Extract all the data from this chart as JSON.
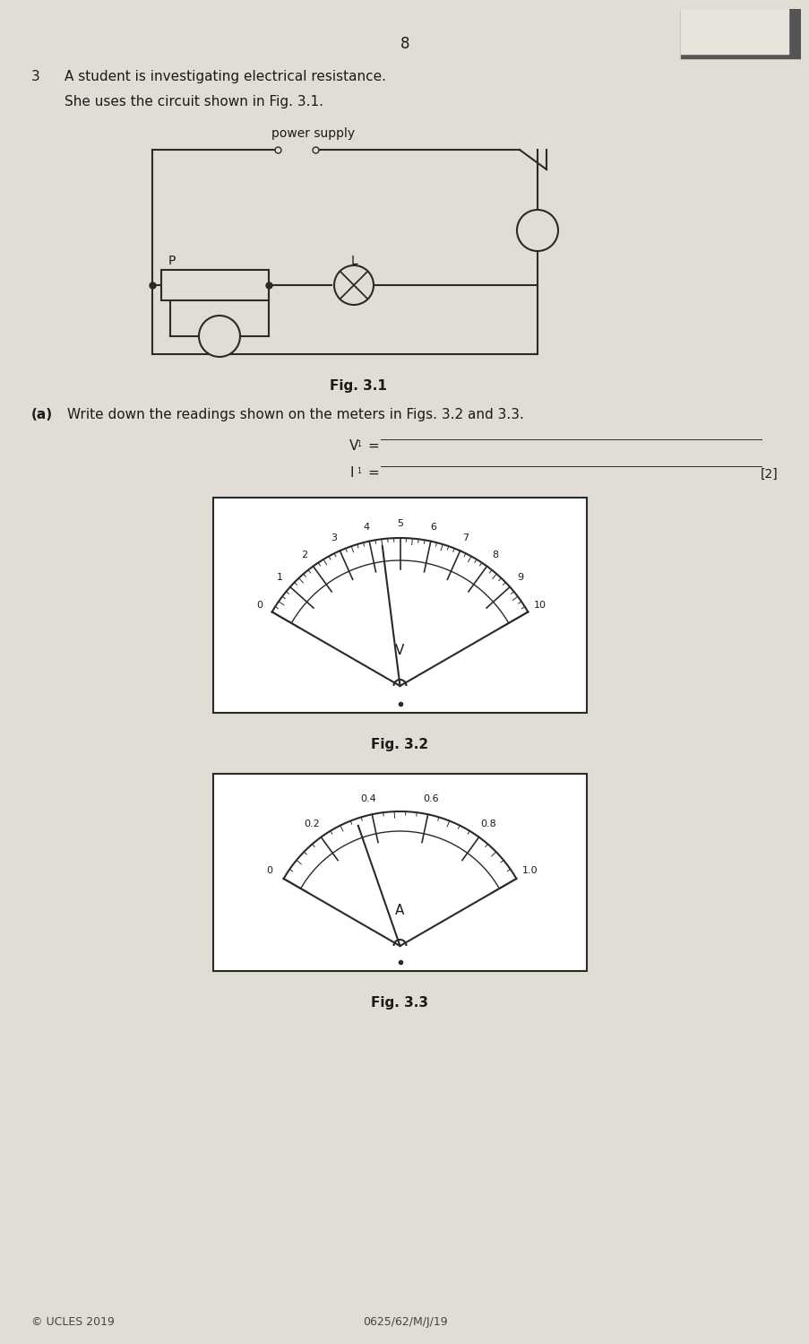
{
  "page_number": "8",
  "question_number": "3",
  "text_line1": "A student is investigating electrical resistance.",
  "text_line2": "She uses the circuit shown in Fig. 3.1.",
  "circuit_label": "power supply",
  "fig31_label": "Fig. 3.1",
  "part_a_intro": "Write down the readings shown on the meters in Figs. 3.2 and 3.3.",
  "v1_label": "V",
  "i1_label": "I",
  "marks": "[2]",
  "fig32_label": "Fig. 3.2",
  "fig33_label": "Fig. 3.3",
  "voltmeter_scale_labels": [
    "0",
    "1",
    "2",
    "3",
    "4",
    "5",
    "6",
    "7",
    "8",
    "9",
    "10"
  ],
  "voltmeter_needle_value": 4.4,
  "voltmeter_max": 10,
  "voltmeter_unit": "V",
  "ammeter_scale_labels": [
    "0",
    "0.2",
    "0.4",
    "0.6",
    "0.8",
    "1.0"
  ],
  "ammeter_needle_value": 0.34,
  "ammeter_max": 1.0,
  "ammeter_unit": "A",
  "footer_left": "© UCLES 2019",
  "footer_right": "0625/62/M/J/19",
  "bg_color": "#c8bfb0",
  "paper_color": "#e2ddd4",
  "line_color": "#2a2a2a",
  "text_color": "#1a1a1a"
}
